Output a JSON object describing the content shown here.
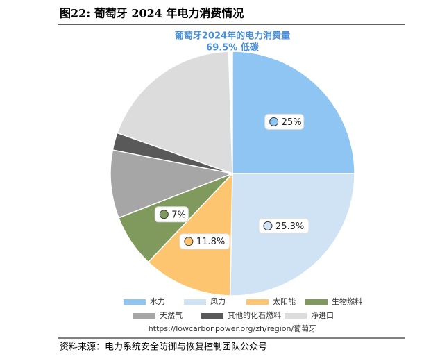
{
  "header": {
    "title": "图22:  葡萄牙 2024 年电力消费情况"
  },
  "chart_data": {
    "type": "pie",
    "title": "葡萄牙2024年的电力消费量",
    "subtitle": "69.5% 低碳",
    "categories": [
      "水力",
      "风力",
      "太阳能",
      "生物燃料",
      "天然气",
      "其他的化石燃料",
      "净进口"
    ],
    "values": [
      25,
      25.3,
      11.8,
      7,
      9,
      2.3,
      19.1
    ],
    "value_labels": [
      "25%",
      "25.3%",
      "11.8%",
      "7%",
      null,
      null,
      null
    ],
    "colors": [
      "#8ec5f2",
      "#cfe3f5",
      "#fdc56f",
      "#7f9a5c",
      "#a6a6a6",
      "#595959",
      "#dcdcdc"
    ],
    "source": "https://lowcarbonpower.org/zh/region/葡萄牙"
  },
  "footer": {
    "text": "资料来源：电力系统安全防御与恢复控制团队公众号"
  }
}
